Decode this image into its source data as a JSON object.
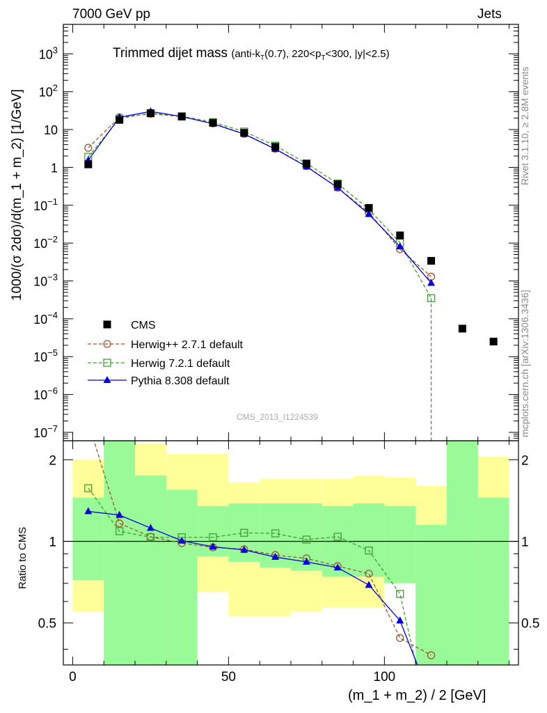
{
  "header": {
    "left": "7000 GeV pp",
    "right": "Jets"
  },
  "side_labels": {
    "rivet": "Rivet 3.1.10, ≥ 2.8M events",
    "mcplots": "mcplots.cern.ch [arXiv:1306.3436]"
  },
  "plot_title": {
    "main": "Trimmed dijet mass",
    "sub_pre": "(anti-k",
    "sub_t": "T",
    "sub_post": "(0.7), 220<p",
    "sub_t2": "T",
    "sub_end": "<300, |y|<2.5)"
  },
  "watermark": "CMS_2013_I1224539",
  "colors": {
    "cms": "#000000",
    "herwigpp": "#a0522d",
    "herwig7": "#3ca02c",
    "pythia": "#0000e0",
    "band_inner": "#98fb98",
    "band_outer": "#ffff99"
  },
  "chart_data": {
    "type": "line",
    "xlabel": "(m_1 + m_2) / 2 [GeV]",
    "ylabel": "1000/(σ 2dσ)/d(m_1 + m_2) [1/GeV]",
    "ratio_ylabel": "Ratio to CMS",
    "xlim": [
      -3,
      143
    ],
    "ylim": [
      6e-08,
      6000
    ],
    "yscale": "log",
    "ratio_ylim": [
      0.35,
      2.35
    ],
    "ratio_yscale": "log",
    "x_ticks": [
      "0",
      "50",
      "100"
    ],
    "y_ticks": [
      "10^{-7}",
      "10^{-6}",
      "10^{-5}",
      "10^{-4}",
      "10^{-3}",
      "10^{-2}",
      "10^{-1}",
      "1",
      "10",
      "10^{2}",
      "10^{3}"
    ],
    "ratio_ticks": [
      "0.5",
      "1",
      "2"
    ],
    "legend": [
      "CMS",
      "Herwig++ 2.7.1 default",
      "Herwig 7.2.1 default",
      "Pythia 8.308 default"
    ],
    "legend_position": "lower-left",
    "series": [
      {
        "name": "CMS",
        "style": "square",
        "x": [
          5,
          15,
          25,
          35,
          45,
          55,
          65,
          75,
          85,
          95,
          105,
          115,
          125,
          135
        ],
        "y": [
          1.2,
          18,
          27,
          22,
          15,
          8.2,
          3.5,
          1.25,
          0.36,
          0.085,
          0.016,
          0.0034,
          5.5e-05,
          2.5e-05
        ]
      },
      {
        "name": "Herwig++ 2.7.1 default",
        "style": "circle-dashed",
        "x": [
          5,
          15,
          25,
          35,
          45,
          55,
          65,
          75,
          85,
          95,
          105,
          115
        ],
        "y": [
          3.3,
          21,
          26,
          22,
          14.5,
          7.7,
          3.1,
          1.08,
          0.29,
          0.064,
          0.0069,
          0.0013
        ]
      },
      {
        "name": "Herwig 7.2.1 default",
        "style": "square-dashed",
        "x": [
          5,
          15,
          25,
          35,
          45,
          55,
          65,
          75,
          85,
          95,
          105,
          115
        ],
        "y": [
          1.9,
          19.5,
          27,
          22.5,
          15.7,
          8.85,
          3.75,
          1.27,
          0.375,
          0.079,
          0.0102,
          0.00035
        ]
      },
      {
        "name": "Pythia 8.308 default",
        "style": "triangle-solid",
        "x": [
          5,
          15,
          25,
          35,
          45,
          55,
          65,
          75,
          85,
          95,
          105,
          115
        ],
        "y": [
          1.55,
          21,
          30,
          22,
          14.2,
          7.6,
          3.05,
          1.05,
          0.29,
          0.058,
          0.0081,
          0.00088
        ]
      }
    ],
    "ratio": {
      "bands": {
        "edges": [
          0,
          10,
          20,
          30,
          40,
          50,
          60,
          70,
          80,
          90,
          100,
          110,
          120,
          130,
          140
        ],
        "inner": [
          [
            0.72,
            1.45
          ],
          [
            0.3,
            3.0
          ],
          [
            0.3,
            1.75
          ],
          [
            0.3,
            1.55
          ],
          [
            0.88,
            1.35
          ],
          [
            0.84,
            1.38
          ],
          [
            0.8,
            1.38
          ],
          [
            0.78,
            1.38
          ],
          [
            0.74,
            1.35
          ],
          [
            0.74,
            1.38
          ],
          [
            0.7,
            1.35
          ],
          [
            0.3,
            1.15
          ],
          [
            0.3,
            3.0
          ],
          [
            0.3,
            1.45
          ]
        ],
        "outer": [
          [
            0.55,
            2.0
          ],
          [
            0.3,
            3.0
          ],
          [
            0.6,
            2.3
          ],
          [
            0.3,
            2.1
          ],
          [
            0.65,
            2.1
          ],
          [
            0.53,
            1.65
          ],
          [
            0.53,
            1.7
          ],
          [
            0.55,
            1.7
          ],
          [
            0.57,
            1.7
          ],
          [
            0.57,
            1.75
          ],
          [
            0.72,
            1.72
          ],
          [
            0.3,
            1.6
          ],
          [
            0.3,
            3.0
          ],
          [
            0.3,
            2.05
          ]
        ]
      },
      "series": [
        {
          "name": "Herwig++ 2.7.1 default",
          "x": [
            5,
            15,
            25,
            35,
            45,
            55,
            65,
            75,
            85,
            95,
            105,
            115
          ],
          "y": [
            2.75,
            1.165,
            1.04,
            0.985,
            0.95,
            0.935,
            0.89,
            0.865,
            0.81,
            0.76,
            0.44,
            0.38
          ]
        },
        {
          "name": "Herwig 7.2.1 default",
          "x": [
            5,
            15,
            25,
            35,
            45,
            55,
            65,
            75,
            85,
            95,
            105,
            115
          ],
          "y": [
            1.57,
            1.09,
            1.035,
            1.035,
            1.035,
            1.075,
            1.07,
            1.015,
            1.04,
            0.925,
            0.64,
            0.2
          ]
        },
        {
          "name": "Pythia 8.308 default",
          "x": [
            5,
            15,
            25,
            35,
            45,
            55,
            65,
            75,
            85,
            95,
            105,
            115
          ],
          "y": [
            1.29,
            1.25,
            1.12,
            1.005,
            0.955,
            0.93,
            0.875,
            0.84,
            0.8,
            0.69,
            0.51,
            0.26
          ]
        }
      ]
    }
  }
}
